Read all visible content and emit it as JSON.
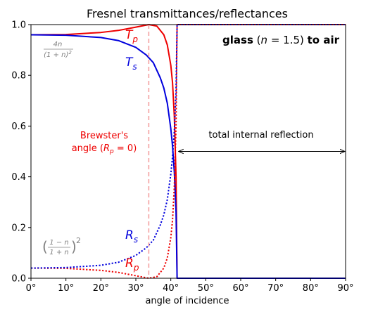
{
  "chart_data": {
    "type": "line",
    "title": "Fresnel transmittances/reflectances",
    "xlabel": "angle of incidence",
    "ylabel": "",
    "xlim": [
      0,
      90
    ],
    "ylim": [
      0,
      1.0
    ],
    "grid": false,
    "x_ticks": [
      {
        "value": 0,
        "label": "0°"
      },
      {
        "value": 10,
        "label": "10°"
      },
      {
        "value": 20,
        "label": "20°"
      },
      {
        "value": 30,
        "label": "30°"
      },
      {
        "value": 40,
        "label": "40°"
      },
      {
        "value": 50,
        "label": "50°"
      },
      {
        "value": 60,
        "label": "60°"
      },
      {
        "value": 70,
        "label": "70°"
      },
      {
        "value": 80,
        "label": "80°"
      },
      {
        "value": 90,
        "label": "90°"
      }
    ],
    "y_ticks": [
      {
        "value": 0.0,
        "label": "0.0"
      },
      {
        "value": 0.2,
        "label": "0.2"
      },
      {
        "value": 0.4,
        "label": "0.4"
      },
      {
        "value": 0.6,
        "label": "0.6"
      },
      {
        "value": 0.8,
        "label": "0.8"
      },
      {
        "value": 1.0,
        "label": "1.0"
      }
    ],
    "refractive_index": 1.5,
    "critical_angle_deg": 41.8,
    "brewster_angle_deg": 33.7,
    "series": [
      {
        "id": "Tp",
        "label": "T",
        "sub": "p",
        "color": "#ee0000",
        "dash": "solid",
        "x": [
          0,
          10,
          20,
          25,
          30,
          33.7,
          36,
          38,
          39,
          40,
          40.5,
          41,
          41.5,
          41.8,
          90
        ],
        "y": [
          0.96,
          0.961,
          0.969,
          0.977,
          0.99,
          1.0,
          0.994,
          0.96,
          0.92,
          0.84,
          0.77,
          0.64,
          0.4,
          0.0,
          0.0
        ]
      },
      {
        "id": "Ts",
        "label": "T",
        "sub": "s",
        "color": "#0000dd",
        "dash": "solid",
        "x": [
          0,
          10,
          20,
          25,
          30,
          33,
          35,
          37,
          38,
          39,
          40,
          40.5,
          41,
          41.5,
          41.8,
          90
        ],
        "y": [
          0.96,
          0.958,
          0.949,
          0.937,
          0.91,
          0.88,
          0.85,
          0.79,
          0.75,
          0.69,
          0.59,
          0.52,
          0.42,
          0.26,
          0.0,
          0.0
        ]
      },
      {
        "id": "Rp",
        "label": "R",
        "sub": "p",
        "color": "#ee0000",
        "dash": "dotted",
        "x": [
          0,
          10,
          20,
          25,
          30,
          33.7,
          36,
          38,
          39,
          40,
          40.5,
          41,
          41.5,
          41.8,
          90
        ],
        "y": [
          0.04,
          0.039,
          0.031,
          0.023,
          0.01,
          0.0,
          0.006,
          0.04,
          0.08,
          0.16,
          0.23,
          0.36,
          0.6,
          1.0,
          1.0
        ]
      },
      {
        "id": "Rs",
        "label": "R",
        "sub": "s",
        "color": "#0000dd",
        "dash": "dotted",
        "x": [
          0,
          10,
          20,
          25,
          30,
          33,
          35,
          37,
          38,
          39,
          40,
          40.5,
          41,
          41.5,
          41.8,
          90
        ],
        "y": [
          0.04,
          0.042,
          0.051,
          0.063,
          0.09,
          0.12,
          0.15,
          0.21,
          0.25,
          0.31,
          0.41,
          0.48,
          0.58,
          0.74,
          1.0,
          1.0
        ]
      }
    ],
    "annotations": {
      "formula_top": {
        "num": "4n",
        "den": "(1 + n)",
        "den_exp": "2",
        "color": "#808080"
      },
      "formula_bottom": {
        "lparen": "(",
        "num": "1 − n",
        "den": "1 + n",
        "rparen": ")",
        "exp": "2",
        "color": "#808080"
      },
      "brewster_line1": "Brewster's",
      "brewster_line2a": "angle (",
      "brewster_R": "R",
      "brewster_sub": "p",
      "brewster_line2b": " = 0)",
      "brewster_color": "#ee0000",
      "glass_bold1": "glass",
      "glass_mid": " (",
      "glass_n": "n",
      "glass_eq": " = 1.5) ",
      "glass_bold2": "to air",
      "tir_text": "total internal reflection",
      "tir_from_deg": 41.8,
      "tir_to_deg": 90,
      "tir_y": 0.5
    }
  }
}
